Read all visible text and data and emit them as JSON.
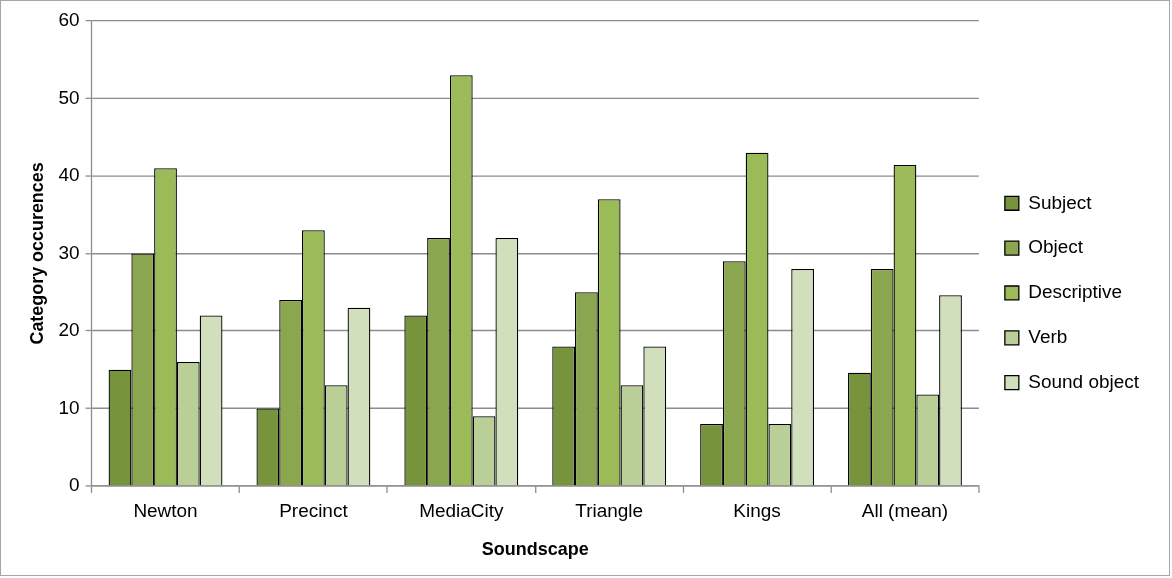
{
  "chart_data": {
    "type": "bar",
    "xlabel": "Soundscape",
    "ylabel": "Category occurences",
    "categories": [
      "Newton",
      "Precinct",
      "MediaCity",
      "Triangle",
      "Kings",
      "All (mean)"
    ],
    "series": [
      {
        "name": "Subject",
        "color": "#77933c",
        "values": [
          15,
          10,
          22,
          18,
          8,
          14.6
        ]
      },
      {
        "name": "Object",
        "color": "#8aa64e",
        "values": [
          30,
          24,
          32,
          25,
          29,
          28
        ]
      },
      {
        "name": "Descriptive",
        "color": "#9bbb59",
        "values": [
          41,
          33,
          53,
          37,
          43,
          41.4
        ]
      },
      {
        "name": "Verb",
        "color": "#bacf97",
        "values": [
          16,
          13,
          9,
          13,
          8,
          11.8
        ]
      },
      {
        "name": "Sound object",
        "color": "#d1dfbd",
        "values": [
          22,
          23,
          32,
          18,
          28,
          24.6
        ]
      }
    ],
    "ylim": [
      0,
      60
    ],
    "yticks": [
      0,
      10,
      20,
      30,
      40,
      50,
      60
    ],
    "grid": "y",
    "legend": "right"
  }
}
